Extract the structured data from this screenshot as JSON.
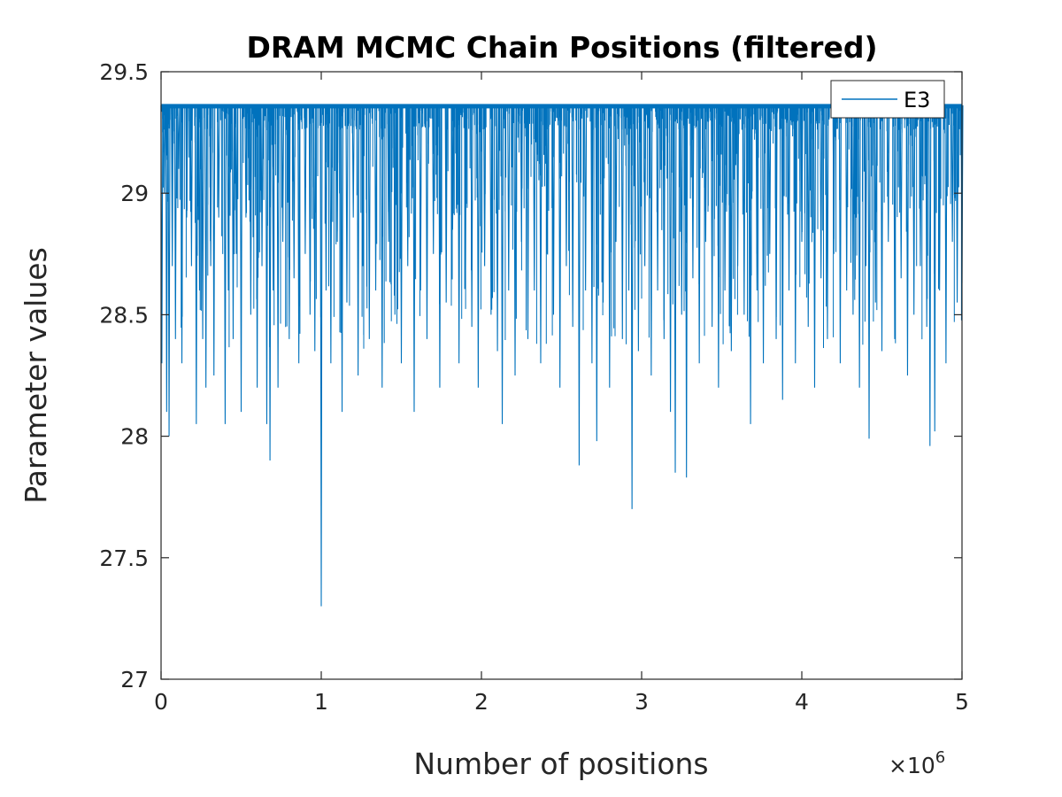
{
  "chart_data": {
    "type": "line",
    "title": "DRAM MCMC Chain Positions (filtered)",
    "xlabel": "Number of positions",
    "ylabel": "Parameter values",
    "x_exponent_base": "×10",
    "x_exponent_power": "6",
    "xlim": [
      0,
      5
    ],
    "ylim": [
      27,
      29.5
    ],
    "xticks": [
      0,
      1,
      2,
      3,
      4,
      5
    ],
    "xtick_labels": [
      "0",
      "1",
      "2",
      "3",
      "4",
      "5"
    ],
    "yticks": [
      27,
      27.5,
      28,
      28.5,
      29,
      29.5
    ],
    "ytick_labels": [
      "27",
      "27.5",
      "28",
      "28.5",
      "29",
      "29.5"
    ],
    "grid": false,
    "legend_position": "top-right",
    "series": [
      {
        "name": "E3",
        "color": "#0072BD",
        "baseline": 29.36,
        "dips": [
          [
            0.005,
            28.3
          ],
          [
            0.02,
            29.0
          ],
          [
            0.035,
            28.1
          ],
          [
            0.05,
            28.0
          ],
          [
            0.07,
            28.7
          ],
          [
            0.09,
            28.4
          ],
          [
            0.11,
            29.1
          ],
          [
            0.13,
            28.3
          ],
          [
            0.16,
            28.9
          ],
          [
            0.19,
            28.7
          ],
          [
            0.22,
            28.05
          ],
          [
            0.24,
            28.6
          ],
          [
            0.26,
            28.4
          ],
          [
            0.28,
            28.2
          ],
          [
            0.31,
            28.7
          ],
          [
            0.33,
            28.25
          ],
          [
            0.36,
            28.9
          ],
          [
            0.4,
            28.05
          ],
          [
            0.42,
            28.6
          ],
          [
            0.45,
            28.4
          ],
          [
            0.47,
            28.75
          ],
          [
            0.5,
            28.1
          ],
          [
            0.53,
            28.9
          ],
          [
            0.56,
            28.5
          ],
          [
            0.6,
            28.2
          ],
          [
            0.63,
            28.7
          ],
          [
            0.66,
            28.05
          ],
          [
            0.68,
            27.9
          ],
          [
            0.7,
            28.6
          ],
          [
            0.73,
            28.2
          ],
          [
            0.76,
            28.8
          ],
          [
            0.8,
            28.4
          ],
          [
            0.83,
            28.65
          ],
          [
            0.86,
            28.3
          ],
          [
            0.9,
            28.75
          ],
          [
            0.93,
            28.5
          ],
          [
            0.96,
            28.35
          ],
          [
            1.0,
            27.3
          ],
          [
            1.03,
            28.6
          ],
          [
            1.06,
            28.3
          ],
          [
            1.1,
            28.8
          ],
          [
            1.13,
            28.1
          ],
          [
            1.16,
            28.55
          ],
          [
            1.2,
            28.9
          ],
          [
            1.23,
            28.25
          ],
          [
            1.26,
            28.7
          ],
          [
            1.3,
            28.4
          ],
          [
            1.34,
            28.6
          ],
          [
            1.38,
            28.2
          ],
          [
            1.42,
            28.8
          ],
          [
            1.46,
            28.5
          ],
          [
            1.5,
            28.3
          ],
          [
            1.54,
            28.7
          ],
          [
            1.58,
            28.1
          ],
          [
            1.62,
            28.6
          ],
          [
            1.66,
            28.4
          ],
          [
            1.7,
            28.75
          ],
          [
            1.74,
            28.2
          ],
          [
            1.78,
            28.55
          ],
          [
            1.82,
            28.85
          ],
          [
            1.86,
            28.3
          ],
          [
            1.9,
            28.65
          ],
          [
            1.94,
            28.45
          ],
          [
            1.98,
            28.2
          ],
          [
            2.02,
            28.7
          ],
          [
            2.06,
            28.5
          ],
          [
            2.1,
            28.35
          ],
          [
            2.13,
            28.05
          ],
          [
            2.17,
            28.6
          ],
          [
            2.21,
            28.25
          ],
          [
            2.25,
            28.8
          ],
          [
            2.29,
            28.4
          ],
          [
            2.33,
            28.6
          ],
          [
            2.37,
            28.3
          ],
          [
            2.41,
            28.75
          ],
          [
            2.45,
            28.5
          ],
          [
            2.49,
            28.2
          ],
          [
            2.53,
            28.7
          ],
          [
            2.57,
            28.45
          ],
          [
            2.61,
            27.88
          ],
          [
            2.65,
            28.6
          ],
          [
            2.69,
            28.3
          ],
          [
            2.72,
            27.98
          ],
          [
            2.76,
            28.55
          ],
          [
            2.8,
            28.2
          ],
          [
            2.84,
            28.8
          ],
          [
            2.88,
            28.4
          ],
          [
            2.92,
            28.6
          ],
          [
            2.94,
            27.7
          ],
          [
            2.98,
            28.35
          ],
          [
            3.02,
            28.7
          ],
          [
            3.06,
            28.25
          ],
          [
            3.1,
            28.6
          ],
          [
            3.14,
            28.4
          ],
          [
            3.18,
            28.1
          ],
          [
            3.21,
            27.85
          ],
          [
            3.25,
            28.5
          ],
          [
            3.28,
            27.83
          ],
          [
            3.32,
            28.65
          ],
          [
            3.36,
            28.3
          ],
          [
            3.4,
            28.8
          ],
          [
            3.44,
            28.45
          ],
          [
            3.48,
            28.2
          ],
          [
            3.52,
            28.6
          ],
          [
            3.56,
            28.35
          ],
          [
            3.6,
            28.7
          ],
          [
            3.64,
            28.5
          ],
          [
            3.68,
            28.05
          ],
          [
            3.72,
            28.6
          ],
          [
            3.76,
            28.3
          ],
          [
            3.8,
            28.75
          ],
          [
            3.84,
            28.4
          ],
          [
            3.88,
            28.15
          ],
          [
            3.92,
            28.6
          ],
          [
            3.96,
            28.3
          ],
          [
            4.0,
            28.8
          ],
          [
            4.04,
            28.45
          ],
          [
            4.08,
            28.2
          ],
          [
            4.12,
            28.65
          ],
          [
            4.16,
            28.4
          ],
          [
            4.2,
            28.75
          ],
          [
            4.24,
            28.3
          ],
          [
            4.28,
            28.6
          ],
          [
            4.32,
            28.5
          ],
          [
            4.36,
            28.2
          ],
          [
            4.4,
            28.7
          ],
          [
            4.42,
            27.99
          ],
          [
            4.46,
            28.55
          ],
          [
            4.5,
            28.35
          ],
          [
            4.54,
            28.8
          ],
          [
            4.58,
            28.4
          ],
          [
            4.62,
            28.65
          ],
          [
            4.66,
            28.25
          ],
          [
            4.7,
            28.5
          ],
          [
            4.74,
            28.7
          ],
          [
            4.78,
            28.45
          ],
          [
            4.8,
            27.96
          ],
          [
            4.83,
            28.02
          ],
          [
            4.86,
            28.6
          ],
          [
            4.9,
            28.3
          ],
          [
            4.94,
            28.8
          ],
          [
            4.97,
            28.55
          ],
          [
            5.0,
            28.63
          ]
        ]
      }
    ]
  }
}
